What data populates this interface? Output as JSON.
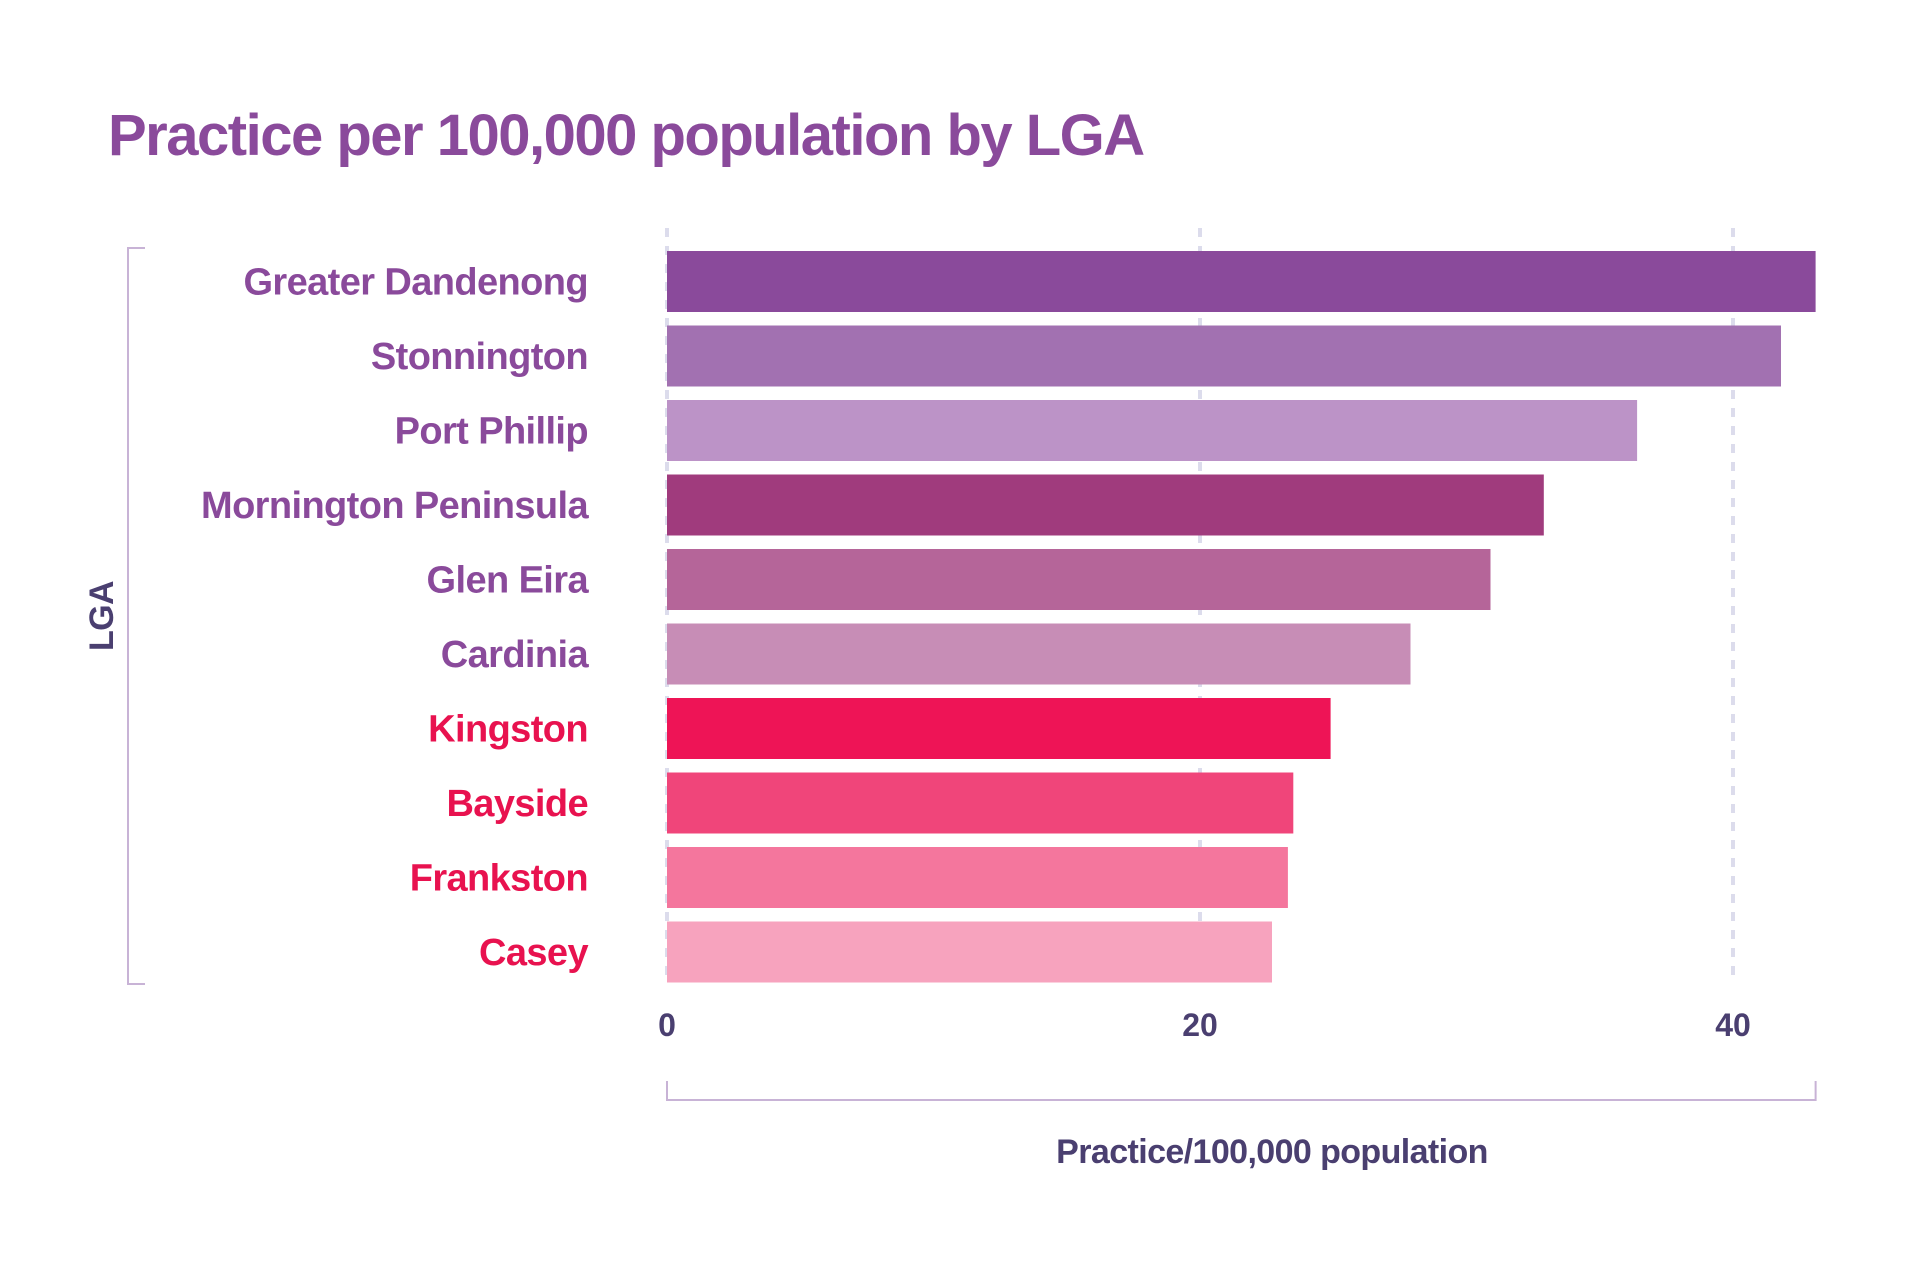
{
  "chart_data": {
    "type": "bar",
    "orientation": "horizontal",
    "title": "Practice per 100,000 population by LGA",
    "xlabel": "Practice/100,000 population",
    "ylabel": "LGA",
    "categories": [
      "Greater Dandenong",
      "Stonnington",
      "Port Phillip",
      "Mornington Peninsula",
      "Glen Eira",
      "Cardinia",
      "Kingston",
      "Bayside",
      "Frankston",
      "Casey"
    ],
    "values": [
      43.1,
      41.8,
      36.4,
      32.9,
      30.9,
      27.9,
      24.9,
      23.5,
      23.3,
      22.7
    ],
    "bar_colors": [
      "#8a4a9b",
      "#a271b1",
      "#bc93c7",
      "#a03b7d",
      "#b56599",
      "#c78db6",
      "#ee1456",
      "#f0457a",
      "#f4769d",
      "#f7a3be"
    ],
    "label_colors": [
      "#8a4a9b",
      "#8a4a9b",
      "#8a4a9b",
      "#8a4a9b",
      "#8a4a9b",
      "#8a4a9b",
      "#e8124f",
      "#e8124f",
      "#e8124f",
      "#e8124f"
    ],
    "xticks": [
      "0",
      "20",
      "40"
    ],
    "xtick_values": [
      0,
      20,
      40
    ],
    "xlim": [
      0,
      43.1
    ],
    "grid": "vertical dashed",
    "colors": {
      "title": "#8a4a9b",
      "axis_text": "#4a3f70",
      "bracket": "#c8b3d6",
      "grid": "#dcdcec"
    }
  }
}
